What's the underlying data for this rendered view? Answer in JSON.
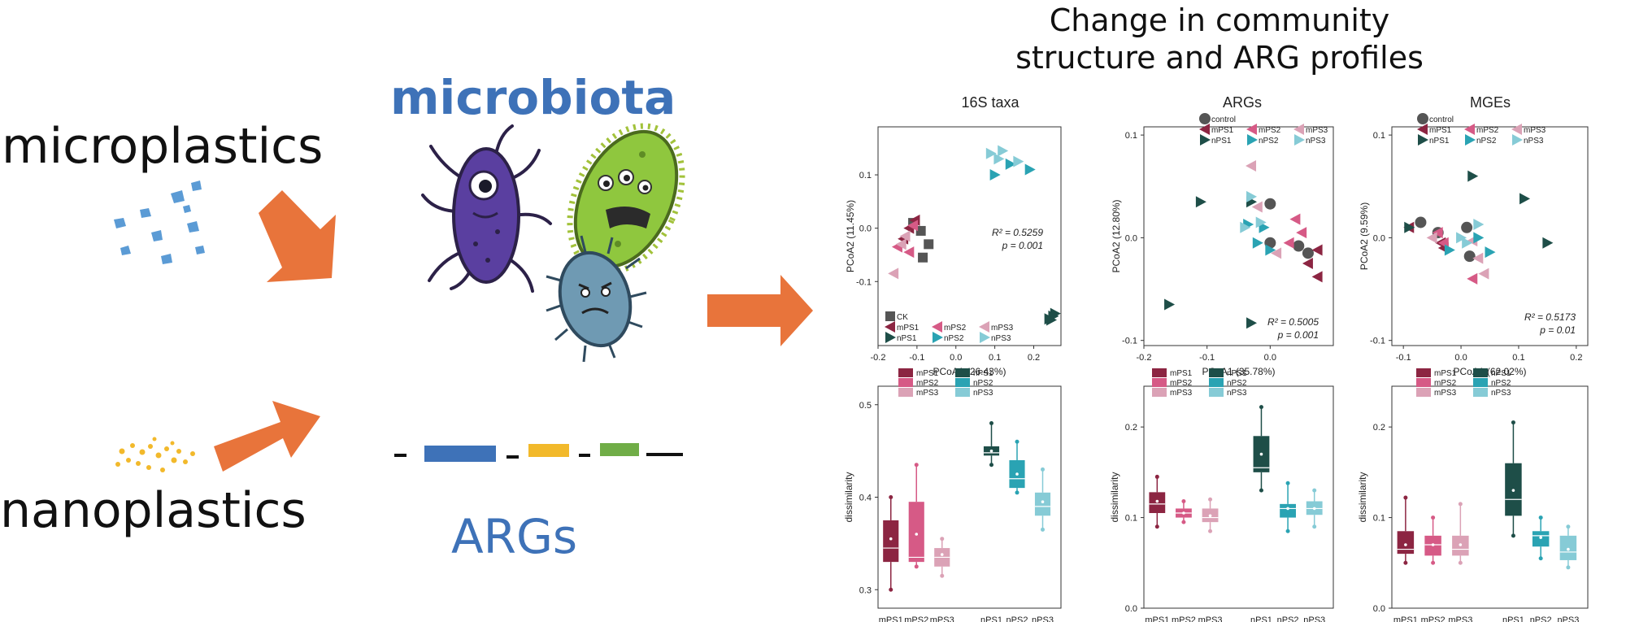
{
  "left": {
    "microplastics": "microplastics",
    "nanoplastics": "nanoplastics",
    "microbiota": "microbiota",
    "args": "ARGs"
  },
  "heading": {
    "line1": "Change in community",
    "line2": "structure and ARG profiles"
  },
  "colors": {
    "microbiota_text": "#3e72b8",
    "arrow": "#e8743b",
    "micro_particle": "#5b9bd5",
    "nano_particle": "#f2b92b",
    "mPS1": "#8c2542",
    "mPS2": "#d65a86",
    "mPS3": "#dba2b6",
    "nPS1": "#1e4e48",
    "nPS2": "#2aa3b3",
    "nPS3": "#86cbd6",
    "ck": "#555555"
  },
  "chart_data": [
    {
      "type": "scatter",
      "title": "16S taxa",
      "xlabel": "PCoA1 (26.43%)",
      "ylabel": "PCoA2 (11.45%)",
      "xlim": [
        -0.2,
        0.27
      ],
      "ylim": [
        -0.22,
        0.19
      ],
      "xticks": [
        "-0.2",
        "-0.1",
        "0.0",
        "0.1",
        "0.2"
      ],
      "yticks": [
        "-0.1",
        "0.0",
        "0.1"
      ],
      "stat1": "R² = 0.5259",
      "stat2": "p = 0.001",
      "legend": [
        "CK",
        "mPS1",
        "mPS2",
        "mPS3",
        "nPS1",
        "nPS2",
        "nPS3"
      ],
      "series": [
        {
          "name": "CK",
          "marker": "square",
          "points": [
            [
              -0.09,
              -0.005
            ],
            [
              -0.07,
              -0.03
            ],
            [
              -0.085,
              -0.055
            ],
            [
              -0.11,
              0.01
            ]
          ]
        },
        {
          "name": "mPS1",
          "marker": "tri-left",
          "points": [
            [
              -0.12,
              0.0
            ],
            [
              -0.105,
              0.015
            ],
            [
              -0.135,
              -0.02
            ]
          ]
        },
        {
          "name": "mPS2",
          "marker": "tri-left",
          "points": [
            [
              -0.15,
              -0.035
            ],
            [
              -0.12,
              -0.045
            ],
            [
              -0.11,
              0.005
            ]
          ]
        },
        {
          "name": "mPS3",
          "marker": "tri-left",
          "points": [
            [
              -0.16,
              -0.085
            ],
            [
              -0.13,
              -0.015
            ],
            [
              -0.14,
              -0.03
            ]
          ]
        },
        {
          "name": "nPS1",
          "marker": "tri-right",
          "points": [
            [
              0.24,
              -0.17
            ],
            [
              0.25,
              -0.165
            ],
            [
              0.255,
              -0.16
            ],
            [
              0.245,
              -0.172
            ]
          ]
        },
        {
          "name": "nPS2",
          "marker": "tri-right",
          "points": [
            [
              0.1,
              0.1
            ],
            [
              0.14,
              0.12
            ],
            [
              0.19,
              0.11
            ]
          ]
        },
        {
          "name": "nPS3",
          "marker": "tri-right",
          "points": [
            [
              0.09,
              0.14
            ],
            [
              0.11,
              0.13
            ],
            [
              0.12,
              0.145
            ],
            [
              0.16,
              0.125
            ]
          ]
        }
      ]
    },
    {
      "type": "scatter",
      "title": "ARGs",
      "xlabel": "PCoA1 (35.78%)",
      "ylabel": "PCoA2 (12.80%)",
      "xlim": [
        -0.2,
        0.1
      ],
      "ylim": [
        -0.105,
        0.108
      ],
      "xticks": [
        "-0.2",
        "-0.1",
        "0.0"
      ],
      "yticks": [
        "-0.1",
        "0.0",
        "0.1"
      ],
      "stat1": "R² = 0.5005",
      "stat2": "p = 0.001",
      "legend": [
        "control",
        "mPS1",
        "mPS2",
        "mPS3",
        "nPS1",
        "nPS2",
        "nPS3"
      ],
      "series": [
        {
          "name": "control",
          "marker": "circle",
          "points": [
            [
              0.0,
              0.033
            ],
            [
              0.045,
              -0.008
            ],
            [
              0.06,
              -0.015
            ],
            [
              0.0,
              -0.005
            ]
          ]
        },
        {
          "name": "mPS1",
          "marker": "tri-left",
          "points": [
            [
              0.06,
              -0.025
            ],
            [
              0.075,
              -0.038
            ],
            [
              0.075,
              -0.012
            ]
          ]
        },
        {
          "name": "mPS2",
          "marker": "tri-left",
          "points": [
            [
              0.04,
              0.018
            ],
            [
              0.05,
              0.005
            ],
            [
              0.03,
              -0.005
            ]
          ]
        },
        {
          "name": "mPS3",
          "marker": "tri-left",
          "points": [
            [
              -0.03,
              0.07
            ],
            [
              -0.02,
              0.03
            ],
            [
              0.01,
              -0.015
            ]
          ]
        },
        {
          "name": "nPS1",
          "marker": "tri-right",
          "points": [
            [
              -0.11,
              0.035
            ],
            [
              -0.16,
              -0.065
            ],
            [
              -0.03,
              -0.083
            ],
            [
              -0.03,
              0.035
            ]
          ]
        },
        {
          "name": "nPS2",
          "marker": "tri-right",
          "points": [
            [
              -0.035,
              0.013
            ],
            [
              -0.01,
              0.01
            ],
            [
              -0.02,
              -0.005
            ],
            [
              0.0,
              -0.012
            ]
          ]
        },
        {
          "name": "nPS3",
          "marker": "tri-right",
          "points": [
            [
              -0.03,
              0.04
            ],
            [
              -0.015,
              0.015
            ],
            [
              -0.04,
              0.01
            ]
          ]
        }
      ]
    },
    {
      "type": "scatter",
      "title": "MGEs",
      "xlabel": "PCoA1 (62.02%)",
      "ylabel": "PCoA2 (9.59%)",
      "xlim": [
        -0.12,
        0.22
      ],
      "ylim": [
        -0.105,
        0.108
      ],
      "xticks": [
        "-0.1",
        "0.0",
        "0.1",
        "0.2"
      ],
      "yticks": [
        "-0.1",
        "0.0",
        "0.1"
      ],
      "stat1": "R² = 0.5173",
      "stat2": "p = 0.01",
      "legend": [
        "control",
        "mPS1",
        "mPS2",
        "mPS3",
        "nPS1",
        "nPS2",
        "nPS3"
      ],
      "series": [
        {
          "name": "control",
          "marker": "circle",
          "points": [
            [
              -0.07,
              0.015
            ],
            [
              -0.04,
              0.005
            ],
            [
              0.01,
              0.01
            ],
            [
              0.015,
              -0.018
            ]
          ]
        },
        {
          "name": "mPS1",
          "marker": "tri-left",
          "points": [
            [
              -0.035,
              -0.005
            ],
            [
              -0.03,
              -0.01
            ],
            [
              -0.09,
              0.01
            ]
          ]
        },
        {
          "name": "mPS2",
          "marker": "tri-left",
          "points": [
            [
              -0.04,
              0.005
            ],
            [
              -0.03,
              -0.005
            ],
            [
              0.02,
              -0.04
            ]
          ]
        },
        {
          "name": "mPS3",
          "marker": "tri-left",
          "points": [
            [
              0.04,
              -0.035
            ],
            [
              0.03,
              -0.02
            ],
            [
              -0.05,
              0.0
            ],
            [
              0.02,
              -0.003
            ]
          ]
        },
        {
          "name": "nPS1",
          "marker": "tri-right",
          "points": [
            [
              0.02,
              0.06
            ],
            [
              0.11,
              0.038
            ],
            [
              0.15,
              -0.005
            ],
            [
              -0.09,
              0.01
            ]
          ]
        },
        {
          "name": "nPS2",
          "marker": "tri-right",
          "points": [
            [
              -0.02,
              -0.012
            ],
            [
              0.05,
              -0.014
            ],
            [
              0.03,
              0.0
            ]
          ]
        },
        {
          "name": "nPS3",
          "marker": "tri-right",
          "points": [
            [
              0.0,
              0.0
            ],
            [
              0.03,
              0.013
            ],
            [
              0.01,
              -0.005
            ]
          ]
        }
      ]
    },
    {
      "type": "box",
      "ylabel": "dissimilarity",
      "ylim": [
        0.28,
        0.52
      ],
      "yticks": [
        "0.3",
        "0.4",
        "0.5"
      ],
      "categories": [
        "mPS1",
        "mPS2",
        "mPS3",
        "nPS1",
        "nPS2",
        "nPS3"
      ],
      "boxes": [
        {
          "min": 0.3,
          "q1": 0.33,
          "median": 0.345,
          "q3": 0.375,
          "max": 0.4,
          "mean": 0.355
        },
        {
          "min": 0.325,
          "q1": 0.33,
          "median": 0.335,
          "q3": 0.395,
          "max": 0.435,
          "mean": 0.36
        },
        {
          "min": 0.315,
          "q1": 0.325,
          "median": 0.335,
          "q3": 0.345,
          "max": 0.355,
          "mean": 0.338
        },
        {
          "min": 0.435,
          "q1": 0.445,
          "median": 0.448,
          "q3": 0.455,
          "max": 0.48,
          "mean": 0.45
        },
        {
          "min": 0.405,
          "q1": 0.41,
          "median": 0.42,
          "q3": 0.44,
          "max": 0.46,
          "mean": 0.425
        },
        {
          "min": 0.365,
          "q1": 0.38,
          "median": 0.39,
          "q3": 0.405,
          "max": 0.43,
          "mean": 0.395
        }
      ],
      "legend": [
        "mPS1",
        "nPS1",
        "mPS2",
        "nPS2",
        "mPS3",
        "nPS3"
      ]
    },
    {
      "type": "box",
      "ylabel": "dissimilarity",
      "ylim": [
        0.0,
        0.245
      ],
      "yticks": [
        "0.0",
        "0.1",
        "0.2"
      ],
      "categories": [
        "mPS1",
        "mPS2",
        "mPS3",
        "nPS1",
        "nPS2",
        "nPS3"
      ],
      "boxes": [
        {
          "min": 0.09,
          "q1": 0.105,
          "median": 0.115,
          "q3": 0.128,
          "max": 0.145,
          "mean": 0.118
        },
        {
          "min": 0.095,
          "q1": 0.1,
          "median": 0.105,
          "q3": 0.11,
          "max": 0.118,
          "mean": 0.105
        },
        {
          "min": 0.085,
          "q1": 0.095,
          "median": 0.1,
          "q3": 0.11,
          "max": 0.12,
          "mean": 0.102
        },
        {
          "min": 0.13,
          "q1": 0.15,
          "median": 0.155,
          "q3": 0.19,
          "max": 0.222,
          "mean": 0.17
        },
        {
          "min": 0.085,
          "q1": 0.1,
          "median": 0.11,
          "q3": 0.115,
          "max": 0.138,
          "mean": 0.11
        },
        {
          "min": 0.09,
          "q1": 0.103,
          "median": 0.11,
          "q3": 0.118,
          "max": 0.13,
          "mean": 0.11
        }
      ],
      "legend": [
        "mPS1",
        "nPS1",
        "mPS2",
        "nPS2",
        "mPS3",
        "nPS3"
      ]
    },
    {
      "type": "box",
      "ylabel": "dissimilarity",
      "ylim": [
        0.0,
        0.245
      ],
      "yticks": [
        "0.0",
        "0.1",
        "0.2"
      ],
      "categories": [
        "mPS1",
        "mPS2",
        "mPS3",
        "nPS1",
        "nPS2",
        "nPS3"
      ],
      "boxes": [
        {
          "min": 0.05,
          "q1": 0.06,
          "median": 0.065,
          "q3": 0.085,
          "max": 0.122,
          "mean": 0.07
        },
        {
          "min": 0.05,
          "q1": 0.058,
          "median": 0.07,
          "q3": 0.08,
          "max": 0.1,
          "mean": 0.07
        },
        {
          "min": 0.05,
          "q1": 0.058,
          "median": 0.065,
          "q3": 0.08,
          "max": 0.115,
          "mean": 0.07
        },
        {
          "min": 0.08,
          "q1": 0.102,
          "median": 0.12,
          "q3": 0.16,
          "max": 0.205,
          "mean": 0.13
        },
        {
          "min": 0.055,
          "q1": 0.068,
          "median": 0.08,
          "q3": 0.085,
          "max": 0.1,
          "mean": 0.078
        },
        {
          "min": 0.045,
          "q1": 0.053,
          "median": 0.062,
          "q3": 0.08,
          "max": 0.09,
          "mean": 0.065
        }
      ],
      "legend": [
        "mPS1",
        "nPS1",
        "mPS2",
        "nPS2",
        "mPS3",
        "nPS3"
      ]
    }
  ]
}
